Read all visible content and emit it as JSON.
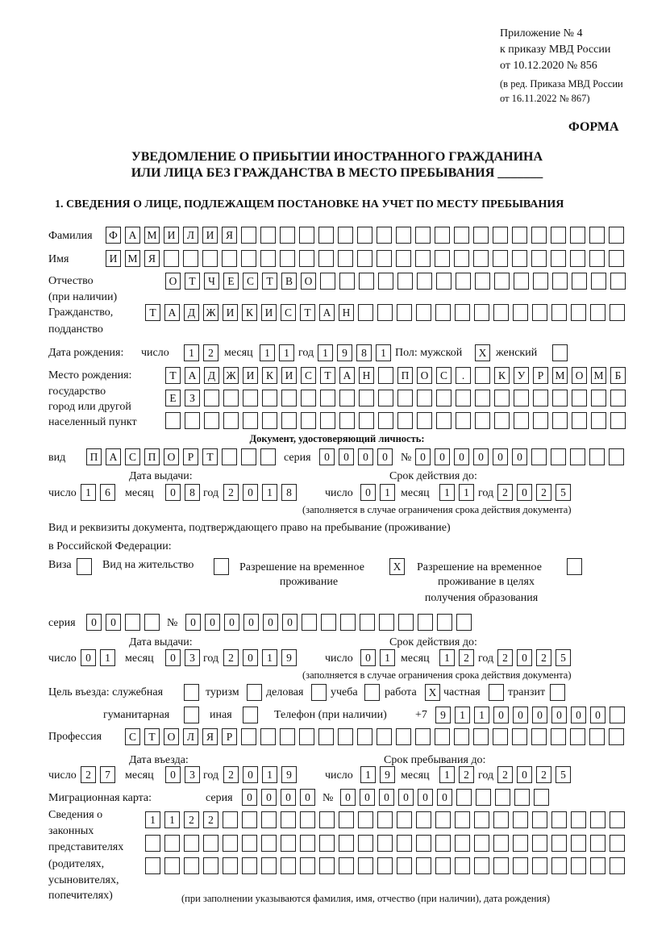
{
  "header": {
    "appendix": "Приложение № 4",
    "order": "к приказу МВД России",
    "order_date": "от 10.12.2020 № 856",
    "amendment_1": "(в ред. Приказа МВД России",
    "amendment_2": "от 16.11.2022 № 867)",
    "form_label": "ФОРМА",
    "title_1": "УВЕДОМЛЕНИЕ О ПРИБЫТИИ ИНОСТРАННОГО ГРАЖДАНИНА",
    "title_2": "ИЛИ ЛИЦА БЕЗ ГРАЖДАНСТВА В МЕСТО ПРЕБЫВАНИЯ _______"
  },
  "section1": {
    "title": "1. СВЕДЕНИЯ О ЛИЦЕ, ПОДЛЕЖАЩЕМ ПОСТАНОВКЕ НА УЧЕТ ПО МЕСТУ ПРЕБЫВАНИЯ"
  },
  "person": {
    "surname_label": "Фамилия",
    "surname": [
      "Ф",
      "А",
      "М",
      "И",
      "Л",
      "И",
      "Я"
    ],
    "name_label": "Имя",
    "name": [
      "И",
      "М",
      "Я"
    ],
    "patronymic_label_1": "Отчество",
    "patronymic_label_2": "(при наличии)",
    "patronymic": [
      "О",
      "Т",
      "Ч",
      "Е",
      "С",
      "Т",
      "В",
      "О"
    ],
    "citizenship_label_1": "Гражданство,",
    "citizenship_label_2": "подданство",
    "citizenship": [
      "Т",
      "А",
      "Д",
      "Ж",
      "И",
      "К",
      "И",
      "С",
      "Т",
      "А",
      "Н"
    ]
  },
  "birth": {
    "label": "Дата рождения:",
    "day_label": "число",
    "day": [
      "1",
      "2"
    ],
    "month_label": "месяц",
    "month": [
      "1",
      "1"
    ],
    "year_label": "год",
    "year": [
      "1",
      "9",
      "8",
      "1"
    ],
    "sex_label": "Пол: мужской",
    "male": [
      "X"
    ],
    "female_label": "женский",
    "female": [
      ""
    ],
    "place_label_1": "Место рождения:",
    "place_label_2": "государство",
    "place_label_3": "город или другой",
    "place_label_4": "населенный пункт",
    "place_row_1": [
      "Т",
      "А",
      "Д",
      "Ж",
      "И",
      "К",
      "И",
      "С",
      "Т",
      "А",
      "Н",
      "",
      "П",
      "О",
      "С",
      ".",
      "",
      "К",
      "У",
      "Р",
      "М",
      "О",
      "М",
      "Б"
    ],
    "place_row_2": [
      "Е",
      "З"
    ],
    "place_row_3": []
  },
  "identity_doc": {
    "heading": "Документ, удостоверяющий личность:",
    "type_label": "вид",
    "type": [
      "П",
      "А",
      "С",
      "П",
      "О",
      "Р",
      "Т"
    ],
    "series_label": "серия",
    "series": [
      "0",
      "0",
      "0",
      "0"
    ],
    "number_label": "№",
    "number": [
      "0",
      "0",
      "0",
      "0",
      "0",
      "0"
    ],
    "issue_label": "Дата выдачи:",
    "valid_label": "Срок действия до:",
    "issue_day_label": "число",
    "issue_day": [
      "1",
      "6"
    ],
    "issue_month_label": "месяц",
    "issue_month": [
      "0",
      "8"
    ],
    "issue_year_label": "год",
    "issue_year": [
      "2",
      "0",
      "1",
      "8"
    ],
    "valid_day_label": "число",
    "valid_day": [
      "0",
      "1"
    ],
    "valid_month_label": "месяц",
    "valid_month": [
      "1",
      "1"
    ],
    "valid_year_label": "год",
    "valid_year": [
      "2",
      "0",
      "2",
      "5"
    ],
    "note": "(заполняется в случае ограничения срока действия документа)"
  },
  "stay_doc": {
    "label_1": "Вид и реквизиты документа, подтверждающего право на пребывание (проживание)",
    "label_2": "в Российской Федерации:",
    "visa_label": "Виза",
    "visa": [
      ""
    ],
    "residence_label": "Вид на жительство",
    "residence": [
      ""
    ],
    "temp_label_1": "Разрешение на временное",
    "temp_label_2": "проживание",
    "temp": [
      "X"
    ],
    "edu_label_1": "Разрешение на временное",
    "edu_label_2": "проживание в целях",
    "edu_label_3": "получения образования",
    "edu": [
      ""
    ],
    "series_label": "серия",
    "series": [
      "0",
      "0"
    ],
    "number_label": "№",
    "number": [
      "0",
      "0",
      "0",
      "0",
      "0",
      "0"
    ],
    "issue_label": "Дата выдачи:",
    "valid_label": "Срок действия до:",
    "issue_day_label": "число",
    "issue_day": [
      "0",
      "1"
    ],
    "issue_month_label": "месяц",
    "issue_month": [
      "0",
      "3"
    ],
    "issue_year_label": "год",
    "issue_year": [
      "2",
      "0",
      "1",
      "9"
    ],
    "valid_day_label": "число",
    "valid_day": [
      "0",
      "1"
    ],
    "valid_month_label": "месяц",
    "valid_month": [
      "1",
      "2"
    ],
    "valid_year_label": "год",
    "valid_year": [
      "2",
      "0",
      "2",
      "5"
    ],
    "note": "(заполняется в случае ограничения срока действия документа)"
  },
  "purpose": {
    "label": "Цель въезда: служебная",
    "official": [
      ""
    ],
    "tourism_label": "туризм",
    "tourism": [
      ""
    ],
    "business_label": "деловая",
    "business": [
      ""
    ],
    "study_label": "учеба",
    "study": [
      ""
    ],
    "work_label": "работа",
    "work": [
      "X"
    ],
    "private_label": "частная",
    "private": [
      ""
    ],
    "transit_label": "транзит",
    "transit": [
      ""
    ],
    "humanitarian_label": "гуманитарная",
    "humanitarian": [
      ""
    ],
    "other_label": "иная",
    "other": [
      ""
    ],
    "phone_label": "Телефон (при наличии)",
    "phone_prefix": "+7",
    "phone": [
      "9",
      "1",
      "1",
      "0",
      "0",
      "0",
      "0",
      "0",
      "0"
    ]
  },
  "profession": {
    "label": "Профессия",
    "value": [
      "С",
      "Т",
      "О",
      "Л",
      "Я",
      "Р"
    ]
  },
  "entry": {
    "entry_label": "Дата въезда:",
    "stay_label": "Срок пребывания до:",
    "entry_day_label": "число",
    "entry_day": [
      "2",
      "7"
    ],
    "entry_month_label": "месяц",
    "entry_month": [
      "0",
      "3"
    ],
    "entry_year_label": "год",
    "entry_year": [
      "2",
      "0",
      "1",
      "9"
    ],
    "stay_day_label": "число",
    "stay_day": [
      "1",
      "9"
    ],
    "stay_month_label": "месяц",
    "stay_month": [
      "1",
      "2"
    ],
    "stay_year_label": "год",
    "stay_year": [
      "2",
      "0",
      "2",
      "5"
    ]
  },
  "migration_card": {
    "label": "Миграционная карта:",
    "series_label": "серия",
    "series": [
      "0",
      "0",
      "0",
      "0"
    ],
    "number_label": "№",
    "number": [
      "0",
      "0",
      "0",
      "0",
      "0",
      "0"
    ]
  },
  "representatives": {
    "label_1": "Сведения о",
    "label_2": "законных",
    "label_3": "представителях",
    "label_4": "(родителях,",
    "label_5": "усыновителях,",
    "label_6": "попечителях)",
    "row_1": [
      "1",
      "1",
      "2",
      "2"
    ],
    "row_2": [],
    "row_3": [],
    "note": "(при заполнении указываются фамилия, имя, отчество (при наличии), дата рождения)"
  }
}
